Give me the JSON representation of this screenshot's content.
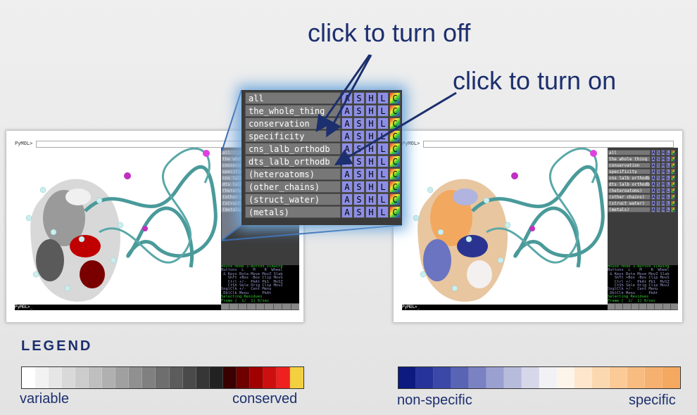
{
  "annotations": [
    "click to turn off",
    "click to turn on"
  ],
  "object_panel": {
    "objects": [
      "all",
      "the_whole_thing",
      "conservation",
      "specificity",
      "cns_lalb_orthodb",
      "dts_lalb_orthodb",
      "(heteroatoms)",
      "(other_chains)",
      "(struct_water)",
      "(metals)"
    ],
    "buttons": [
      "A",
      "S",
      "H",
      "L",
      "C"
    ]
  },
  "windows": [
    {
      "prompt_top": "PyMOL>",
      "prompt_bottom": "PyMOL>_"
    },
    {
      "prompt_top": "PyMOL>",
      "prompt_bottom": "PyMOL>_"
    }
  ],
  "status_lines": [
    "Mouse Mode 3-Button Viewing",
    "Buttons  L    M    R  Wheel",
    " & Keys Rota Move MovZ Slab",
    "   Shft +Box -Box Clip MovS",
    "   Ctrl +/-  PkAt Pk1  MvSZ",
    "   CtSh Sele Orig Clip MovZ",
    "SnglClk +/-  Cent Menu",
    " DblClk Menu  -   PkAt",
    "Selecting Residues",
    "Frame [  1/  1] 0/sec"
  ],
  "legend": {
    "title": "LEGEND",
    "scales": [
      {
        "low": "variable",
        "high": "conserved",
        "colors": [
          "#ffffff",
          "#f2f2f2",
          "#e6e6e6",
          "#d9d9d9",
          "#cccccc",
          "#bfbfbf",
          "#b0b0b0",
          "#a0a0a0",
          "#909090",
          "#808080",
          "#6e6e6e",
          "#5c5c5c",
          "#4a4a4a",
          "#363636",
          "#222222",
          "#3a0000",
          "#6e0000",
          "#a00000",
          "#cc1010",
          "#ee2020",
          "#f2d040"
        ]
      },
      {
        "low": "non-specific",
        "high": "specific",
        "colors": [
          "#0d1a80",
          "#26339a",
          "#3c48a8",
          "#5a64b4",
          "#7a82c2",
          "#9aa0d0",
          "#b8bcdc",
          "#d6d8ea",
          "#f2f2f6",
          "#fdf4ea",
          "#fde6cc",
          "#fcd8b0",
          "#fbca96",
          "#f8bc80",
          "#f6b070",
          "#f4a860"
        ]
      }
    ]
  }
}
